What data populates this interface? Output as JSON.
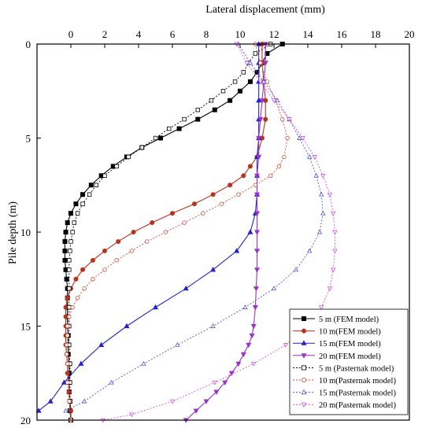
{
  "chart_data": {
    "type": "line",
    "xlabel": "Lateral displacement (mm)",
    "ylabel": "Pile depth (m)",
    "xlim": [
      -2,
      20
    ],
    "ylim": [
      0,
      20
    ],
    "y_inverted": true,
    "x_axis_position": "top",
    "x_ticks": [
      0,
      2,
      4,
      6,
      8,
      10,
      12,
      14,
      16,
      18,
      20
    ],
    "y_ticks": [
      0,
      5,
      10,
      15,
      20
    ],
    "grid": false,
    "legend_position": "bottom-right",
    "series": [
      {
        "name": "5 m  (FEM model)",
        "color": "#000000",
        "marker": "square",
        "filled": true,
        "dash": "",
        "points": [
          [
            12.5,
            0
          ],
          [
            11.6,
            0.5
          ],
          [
            11.3,
            1
          ],
          [
            11.0,
            1.5
          ],
          [
            10.6,
            2
          ],
          [
            10.0,
            2.5
          ],
          [
            9.4,
            3
          ],
          [
            8.5,
            3.5
          ],
          [
            7.5,
            4
          ],
          [
            6.4,
            4.5
          ],
          [
            5.3,
            5
          ],
          [
            4.2,
            5.5
          ],
          [
            3.3,
            6
          ],
          [
            2.5,
            6.5
          ],
          [
            1.8,
            7
          ],
          [
            1.2,
            7.5
          ],
          [
            0.7,
            8
          ],
          [
            0.3,
            8.5
          ],
          [
            0.0,
            9
          ],
          [
            -0.2,
            9.5
          ],
          [
            -0.3,
            10
          ],
          [
            -0.35,
            10.5
          ],
          [
            -0.35,
            11
          ],
          [
            -0.35,
            11.5
          ],
          [
            -0.3,
            12
          ],
          [
            -0.25,
            12.5
          ],
          [
            -0.2,
            13
          ],
          [
            -0.2,
            13.5
          ],
          [
            -0.2,
            14
          ],
          [
            -0.2,
            14.5
          ],
          [
            -0.2,
            15
          ],
          [
            -0.15,
            15.5
          ],
          [
            -0.15,
            16
          ],
          [
            -0.15,
            16.5
          ],
          [
            -0.1,
            17
          ],
          [
            -0.1,
            17.5
          ],
          [
            -0.1,
            18
          ],
          [
            -0.1,
            18.5
          ],
          [
            -0.05,
            19
          ],
          [
            -0.05,
            19.5
          ],
          [
            0.0,
            20
          ]
        ]
      },
      {
        "name": "10 m(FEM model)",
        "color": "#b8321e",
        "marker": "circle",
        "filled": true,
        "dash": "",
        "points": [
          [
            11.3,
            0
          ],
          [
            11.3,
            1
          ],
          [
            11.4,
            2
          ],
          [
            11.5,
            3
          ],
          [
            11.5,
            4
          ],
          [
            11.3,
            5
          ],
          [
            11.0,
            6
          ],
          [
            10.6,
            6.5
          ],
          [
            10.2,
            7
          ],
          [
            9.4,
            7.5
          ],
          [
            8.4,
            8
          ],
          [
            7.3,
            8.5
          ],
          [
            6.0,
            9
          ],
          [
            4.8,
            9.5
          ],
          [
            3.7,
            10
          ],
          [
            2.8,
            10.5
          ],
          [
            2.0,
            11
          ],
          [
            1.3,
            11.5
          ],
          [
            0.7,
            12
          ],
          [
            0.3,
            12.5
          ],
          [
            0.0,
            13
          ],
          [
            -0.2,
            13.5
          ],
          [
            -0.3,
            14
          ],
          [
            -0.3,
            14.5
          ],
          [
            -0.3,
            15
          ],
          [
            -0.3,
            15.5
          ],
          [
            -0.3,
            16
          ],
          [
            -0.25,
            16.5
          ],
          [
            -0.2,
            17
          ],
          [
            -0.2,
            17.5
          ],
          [
            -0.1,
            18
          ],
          [
            -0.1,
            18.5
          ],
          [
            -0.05,
            19
          ],
          [
            0.0,
            19.5
          ],
          [
            0.0,
            20
          ]
        ]
      },
      {
        "name": "15 m(FEM model)",
        "color": "#2222cc",
        "marker": "triangle-up",
        "filled": true,
        "dash": "",
        "points": [
          [
            11.1,
            0
          ],
          [
            11.1,
            1
          ],
          [
            11.1,
            2
          ],
          [
            11.1,
            3
          ],
          [
            11.1,
            4
          ],
          [
            11.1,
            5
          ],
          [
            11.0,
            6
          ],
          [
            11.0,
            7
          ],
          [
            11.0,
            8
          ],
          [
            10.9,
            9
          ],
          [
            10.6,
            10
          ],
          [
            9.8,
            11
          ],
          [
            8.4,
            12
          ],
          [
            6.8,
            13
          ],
          [
            5.0,
            14
          ],
          [
            3.3,
            15
          ],
          [
            1.8,
            16
          ],
          [
            0.6,
            17
          ],
          [
            -0.4,
            18
          ],
          [
            -1.2,
            19
          ],
          [
            -1.9,
            19.5
          ]
        ]
      },
      {
        "name": "20 m(FEM model)",
        "color": "#9933cc",
        "marker": "triangle-down",
        "filled": true,
        "dash": "",
        "points": [
          [
            11.5,
            0
          ],
          [
            11.5,
            1
          ],
          [
            11.4,
            2
          ],
          [
            11.3,
            3
          ],
          [
            11.2,
            4
          ],
          [
            11.1,
            5
          ],
          [
            11.1,
            6
          ],
          [
            11.0,
            7
          ],
          [
            11.0,
            8
          ],
          [
            11.0,
            9
          ],
          [
            11.0,
            10
          ],
          [
            11.0,
            11
          ],
          [
            11.0,
            12
          ],
          [
            10.95,
            13
          ],
          [
            10.9,
            14
          ],
          [
            10.8,
            15
          ],
          [
            10.7,
            15.5
          ],
          [
            10.5,
            16
          ],
          [
            10.2,
            16.5
          ],
          [
            9.9,
            17
          ],
          [
            9.5,
            17.5
          ],
          [
            9.1,
            18
          ],
          [
            8.6,
            18.5
          ],
          [
            8.0,
            19
          ],
          [
            7.4,
            19.5
          ],
          [
            6.8,
            20
          ]
        ]
      },
      {
        "name": "5 m  (Pasternak model)",
        "color": "#000000",
        "marker": "square",
        "filled": false,
        "dash": "2,2",
        "points": [
          [
            11.8,
            0
          ],
          [
            10.9,
            0.5
          ],
          [
            10.5,
            1
          ],
          [
            10.2,
            1.5
          ],
          [
            9.7,
            2
          ],
          [
            9.0,
            2.5
          ],
          [
            8.3,
            3
          ],
          [
            7.5,
            3.5
          ],
          [
            6.7,
            4
          ],
          [
            5.8,
            4.5
          ],
          [
            5.0,
            5
          ],
          [
            4.2,
            5.5
          ],
          [
            3.4,
            6
          ],
          [
            2.7,
            6.5
          ],
          [
            2.0,
            7
          ],
          [
            1.5,
            7.5
          ],
          [
            1.1,
            8
          ],
          [
            0.7,
            8.5
          ],
          [
            0.4,
            9
          ],
          [
            0.2,
            9.5
          ],
          [
            0.1,
            10
          ],
          [
            0.0,
            10.5
          ],
          [
            -0.05,
            11
          ],
          [
            -0.1,
            11.5
          ],
          [
            -0.1,
            12
          ],
          [
            -0.1,
            13
          ],
          [
            -0.1,
            14
          ],
          [
            -0.1,
            15
          ],
          [
            -0.1,
            16
          ],
          [
            -0.05,
            17
          ],
          [
            -0.05,
            18
          ],
          [
            -0.05,
            19
          ],
          [
            0.0,
            20
          ]
        ]
      },
      {
        "name": "10 m(Pasternak model)",
        "color": "#d24b3a",
        "marker": "circle",
        "filled": false,
        "dash": "2,2",
        "points": [
          [
            10.9,
            0
          ],
          [
            11.2,
            1
          ],
          [
            11.6,
            2
          ],
          [
            12.1,
            3
          ],
          [
            12.5,
            4
          ],
          [
            12.8,
            5
          ],
          [
            12.6,
            6
          ],
          [
            12.3,
            6.5
          ],
          [
            11.8,
            7
          ],
          [
            10.9,
            7.5
          ],
          [
            9.9,
            8
          ],
          [
            8.9,
            8.5
          ],
          [
            7.8,
            9
          ],
          [
            6.7,
            9.5
          ],
          [
            5.6,
            10
          ],
          [
            4.5,
            10.5
          ],
          [
            3.6,
            11
          ],
          [
            2.7,
            11.5
          ],
          [
            2.0,
            12
          ],
          [
            1.3,
            12.5
          ],
          [
            0.8,
            13
          ],
          [
            0.4,
            13.5
          ],
          [
            0.1,
            14
          ],
          [
            -0.1,
            14.5
          ],
          [
            -0.2,
            15
          ],
          [
            -0.2,
            15.5
          ],
          [
            -0.25,
            16
          ],
          [
            -0.25,
            16.5
          ],
          [
            -0.2,
            17
          ],
          [
            -0.2,
            18
          ],
          [
            -0.1,
            19
          ],
          [
            0.0,
            20
          ]
        ]
      },
      {
        "name": "15 m(Pasternak model)",
        "color": "#5555cc",
        "marker": "triangle-up",
        "filled": false,
        "dash": "2,2",
        "points": [
          [
            9.9,
            0
          ],
          [
            10.6,
            1
          ],
          [
            11.4,
            2
          ],
          [
            12.2,
            3
          ],
          [
            12.9,
            4
          ],
          [
            13.5,
            5
          ],
          [
            14.1,
            6
          ],
          [
            14.5,
            7
          ],
          [
            14.8,
            8
          ],
          [
            14.9,
            9
          ],
          [
            14.7,
            10
          ],
          [
            14.1,
            11
          ],
          [
            13.3,
            12
          ],
          [
            12.0,
            13
          ],
          [
            10.3,
            14
          ],
          [
            8.4,
            15
          ],
          [
            6.3,
            16
          ],
          [
            4.3,
            17
          ],
          [
            2.4,
            18
          ],
          [
            0.8,
            19
          ],
          [
            -0.3,
            19.5
          ]
        ]
      },
      {
        "name": "20 m(Pasternak model)",
        "color": "#cc55dd",
        "marker": "triangle-down",
        "filled": false,
        "dash": "2,2",
        "points": [
          [
            9.8,
            0
          ],
          [
            10.4,
            1
          ],
          [
            11.2,
            2
          ],
          [
            12.0,
            3
          ],
          [
            12.9,
            4
          ],
          [
            13.7,
            5
          ],
          [
            14.4,
            6
          ],
          [
            14.9,
            7
          ],
          [
            15.3,
            8
          ],
          [
            15.5,
            9
          ],
          [
            15.6,
            10
          ],
          [
            15.6,
            11
          ],
          [
            15.5,
            12
          ],
          [
            15.3,
            13
          ],
          [
            14.8,
            14
          ],
          [
            14.0,
            15
          ],
          [
            12.7,
            16
          ],
          [
            10.8,
            17
          ],
          [
            8.5,
            18
          ],
          [
            6.0,
            19
          ],
          [
            3.6,
            19.7
          ],
          [
            1.9,
            20
          ]
        ]
      }
    ]
  }
}
